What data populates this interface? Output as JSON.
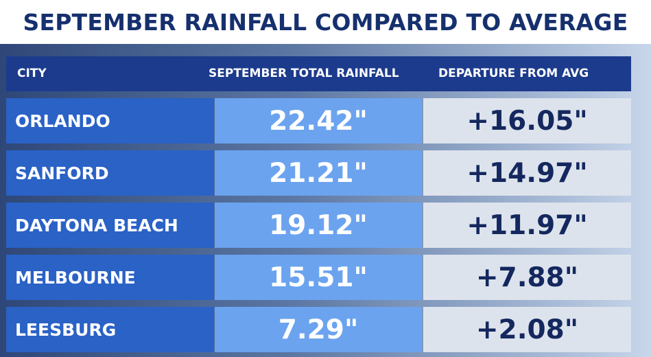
{
  "title": "SEPTEMBER RAINFALL COMPARED TO AVERAGE",
  "headers": {
    "city": "CITY",
    "total": "SEPTEMBER TOTAL RAINFALL",
    "departure": "DEPARTURE FROM AVG"
  },
  "rows": [
    {
      "city": "ORLANDO",
      "total": "22.42\"",
      "departure": "+16.05\""
    },
    {
      "city": "SANFORD",
      "total": "21.21\"",
      "departure": "+14.97\""
    },
    {
      "city": "DAYTONA BEACH",
      "total": "19.12\"",
      "departure": "+11.97\""
    },
    {
      "city": "MELBOURNE",
      "total": "15.51\"",
      "departure": "+7.88\""
    },
    {
      "city": "LEESBURG",
      "total": "7.29\"",
      "departure": "+2.08\""
    }
  ],
  "colors": {
    "title": "#16306e",
    "header_bg": "#1c3b8c",
    "city_bg": "#2a62c6",
    "total_bg": "#6ba3ef",
    "departure_bg": "#dde3ec",
    "departure_text": "#14285f"
  },
  "chart_data": {
    "type": "table",
    "title": "SEPTEMBER RAINFALL COMPARED TO AVERAGE",
    "columns": [
      "CITY",
      "SEPTEMBER TOTAL RAINFALL",
      "DEPARTURE FROM AVG"
    ],
    "categories": [
      "ORLANDO",
      "SANFORD",
      "DAYTONA BEACH",
      "MELBOURNE",
      "LEESBURG"
    ],
    "series": [
      {
        "name": "SEPTEMBER TOTAL RAINFALL",
        "values": [
          22.42,
          21.21,
          19.12,
          15.51,
          7.29
        ]
      },
      {
        "name": "DEPARTURE FROM AVG",
        "values": [
          16.05,
          14.97,
          11.97,
          7.88,
          2.08
        ]
      }
    ]
  }
}
